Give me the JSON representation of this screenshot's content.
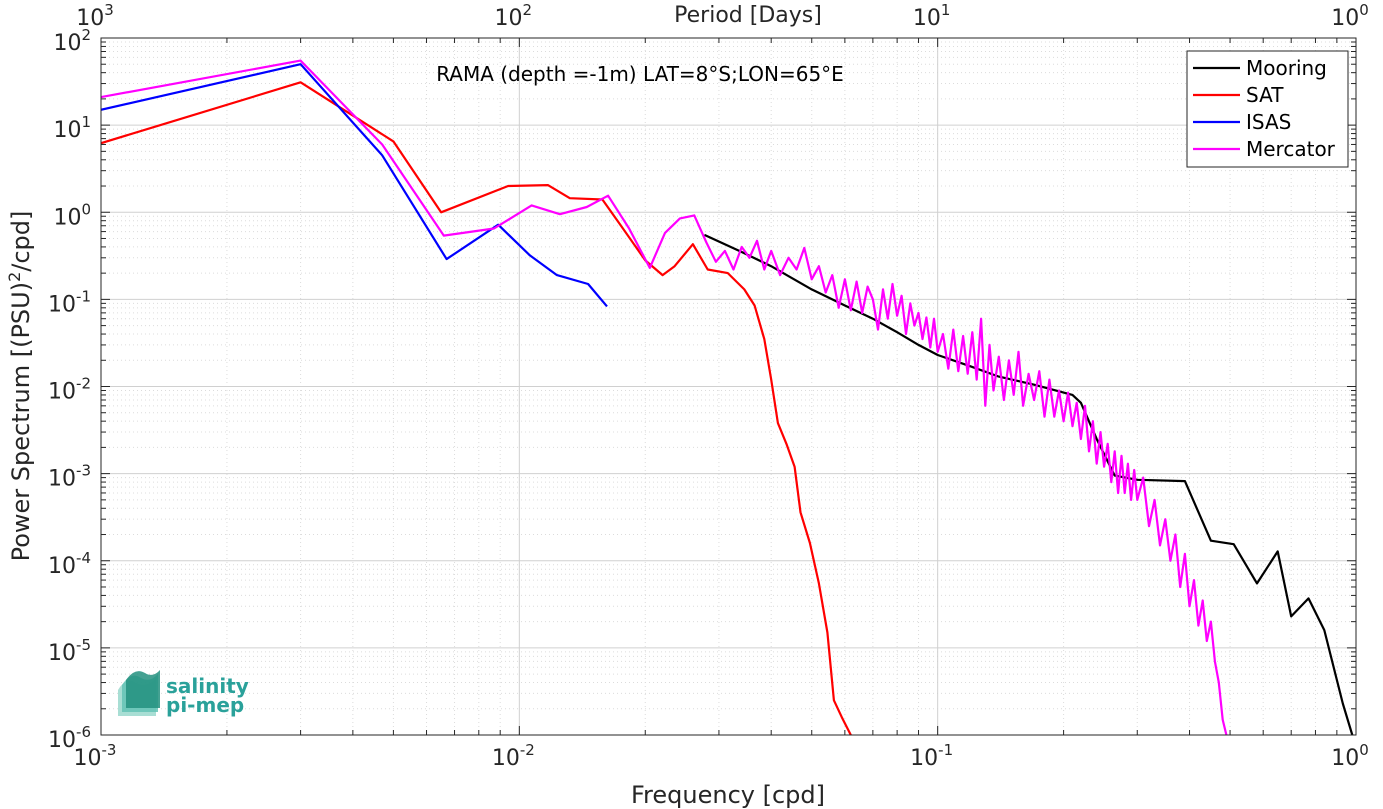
{
  "chart_data": {
    "type": "line",
    "title": "RAMA (depth =-1m) LAT=8°S;LON=65°E",
    "xlabel": "Frequency [cpd]",
    "ylabel": "Power Spectrum [(PSU)²/cpd]",
    "ylabel_parts": {
      "main": "Power Spectrum [(PSU)",
      "sup": "2",
      "tail": "/cpd]"
    },
    "x2label": "Period [Days]",
    "xscale": "log",
    "yscale": "log",
    "xlim": [
      0.001,
      1
    ],
    "ylim": [
      1e-06,
      100
    ],
    "grid": true,
    "legend_position": "top-right",
    "x_ticks": [
      {
        "value": 0.001,
        "base": "10",
        "exp": "-3"
      },
      {
        "value": 0.01,
        "base": "10",
        "exp": "-2"
      },
      {
        "value": 0.1,
        "base": "10",
        "exp": "-1"
      },
      {
        "value": 1,
        "base": "10",
        "exp": "0"
      }
    ],
    "x2_ticks": [
      {
        "value": 0.001,
        "base": "10",
        "exp": "3"
      },
      {
        "value": 0.01,
        "base": "10",
        "exp": "2"
      },
      {
        "value": 0.1,
        "base": "10",
        "exp": "1"
      },
      {
        "value": 1,
        "base": "10",
        "exp": "0"
      }
    ],
    "y_ticks": [
      {
        "value": 100,
        "base": "10",
        "exp": "2"
      },
      {
        "value": 10,
        "base": "10",
        "exp": "1"
      },
      {
        "value": 1,
        "base": "10",
        "exp": "0"
      },
      {
        "value": 0.1,
        "base": "10",
        "exp": "-1"
      },
      {
        "value": 0.01,
        "base": "10",
        "exp": "-2"
      },
      {
        "value": 0.001,
        "base": "10",
        "exp": "-3"
      },
      {
        "value": 0.0001,
        "base": "10",
        "exp": "-4"
      },
      {
        "value": 1e-05,
        "base": "10",
        "exp": "-5"
      },
      {
        "value": 1e-06,
        "base": "10",
        "exp": "-6"
      }
    ],
    "series": [
      {
        "name": "Mooring",
        "color": "#000000",
        "points": [
          [
            0.0277,
            0.55
          ],
          [
            0.034,
            0.35
          ],
          [
            0.04,
            0.24
          ],
          [
            0.05,
            0.13
          ],
          [
            0.06,
            0.085
          ],
          [
            0.07,
            0.06
          ],
          [
            0.08,
            0.042
          ],
          [
            0.09,
            0.03
          ],
          [
            0.1,
            0.023
          ],
          [
            0.12,
            0.017
          ],
          [
            0.14,
            0.013
          ],
          [
            0.17,
            0.0105
          ],
          [
            0.21,
            0.008
          ],
          [
            0.22,
            0.0065
          ],
          [
            0.24,
            0.0025
          ],
          [
            0.265,
            0.00095
          ],
          [
            0.3,
            0.00085
          ],
          [
            0.39,
            0.00082
          ],
          [
            0.45,
            0.00017
          ],
          [
            0.51,
            0.000155
          ],
          [
            0.58,
            5.5e-05
          ],
          [
            0.65,
            0.000128
          ],
          [
            0.7,
            2.3e-05
          ],
          [
            0.77,
            3.7e-05
          ],
          [
            0.84,
            1.6e-05
          ],
          [
            0.93,
            2.3e-06
          ],
          [
            0.98,
            1e-06
          ]
        ]
      },
      {
        "name": "SAT",
        "color": "#ff0000",
        "points": [
          [
            0.001,
            6.2
          ],
          [
            0.003,
            31
          ],
          [
            0.005,
            6.5
          ],
          [
            0.0065,
            1.0
          ],
          [
            0.0094,
            2.0
          ],
          [
            0.0117,
            2.05
          ],
          [
            0.0132,
            1.45
          ],
          [
            0.0158,
            1.4
          ],
          [
            0.0175,
            0.7
          ],
          [
            0.02,
            0.28
          ],
          [
            0.022,
            0.19
          ],
          [
            0.0235,
            0.24
          ],
          [
            0.026,
            0.43
          ],
          [
            0.0282,
            0.22
          ],
          [
            0.0315,
            0.2
          ],
          [
            0.0345,
            0.13
          ],
          [
            0.0365,
            0.085
          ],
          [
            0.0385,
            0.035
          ],
          [
            0.04,
            0.012
          ],
          [
            0.0415,
            0.0038
          ],
          [
            0.0435,
            0.0022
          ],
          [
            0.0455,
            0.0012
          ],
          [
            0.047,
            0.00036
          ],
          [
            0.0495,
            0.00016
          ],
          [
            0.052,
            5.5e-05
          ],
          [
            0.0545,
            1.5e-05
          ],
          [
            0.0565,
            2.5e-06
          ],
          [
            0.059,
            1.6e-06
          ],
          [
            0.062,
            1e-06
          ]
        ]
      },
      {
        "name": "ISAS",
        "color": "#0000ff",
        "points": [
          [
            0.001,
            15
          ],
          [
            0.003,
            50
          ],
          [
            0.0047,
            4.5
          ],
          [
            0.0067,
            0.29
          ],
          [
            0.0089,
            0.72
          ],
          [
            0.0106,
            0.32
          ],
          [
            0.0123,
            0.19
          ],
          [
            0.0146,
            0.15
          ],
          [
            0.0162,
            0.083
          ]
        ]
      },
      {
        "name": "Mercator",
        "color": "#ff00ff",
        "points": [
          [
            0.001,
            21
          ],
          [
            0.003,
            55
          ],
          [
            0.0047,
            6.0
          ],
          [
            0.0066,
            0.54
          ],
          [
            0.0087,
            0.65
          ],
          [
            0.0107,
            1.2
          ],
          [
            0.0125,
            0.95
          ],
          [
            0.0145,
            1.15
          ],
          [
            0.0163,
            1.55
          ],
          [
            0.0183,
            0.65
          ],
          [
            0.0205,
            0.23
          ],
          [
            0.0223,
            0.58
          ],
          [
            0.0242,
            0.85
          ],
          [
            0.0262,
            0.92
          ],
          [
            0.028,
            0.45
          ],
          [
            0.0295,
            0.27
          ],
          [
            0.031,
            0.36
          ],
          [
            0.0325,
            0.22
          ],
          [
            0.034,
            0.4
          ],
          [
            0.0355,
            0.3
          ],
          [
            0.037,
            0.47
          ],
          [
            0.0385,
            0.22
          ],
          [
            0.04,
            0.36
          ],
          [
            0.042,
            0.19
          ],
          [
            0.044,
            0.3
          ],
          [
            0.046,
            0.22
          ],
          [
            0.048,
            0.39
          ],
          [
            0.05,
            0.17
          ],
          [
            0.052,
            0.24
          ],
          [
            0.054,
            0.12
          ],
          [
            0.056,
            0.19
          ],
          [
            0.058,
            0.08
          ],
          [
            0.06,
            0.17
          ],
          [
            0.062,
            0.075
          ],
          [
            0.064,
            0.16
          ],
          [
            0.066,
            0.07
          ],
          [
            0.068,
            0.14
          ],
          [
            0.07,
            0.1
          ],
          [
            0.072,
            0.045
          ],
          [
            0.074,
            0.13
          ],
          [
            0.076,
            0.06
          ],
          [
            0.078,
            0.15
          ],
          [
            0.08,
            0.065
          ],
          [
            0.082,
            0.11
          ],
          [
            0.084,
            0.04
          ],
          [
            0.086,
            0.09
          ],
          [
            0.088,
            0.05
          ],
          [
            0.09,
            0.07
          ],
          [
            0.092,
            0.035
          ],
          [
            0.094,
            0.062
          ],
          [
            0.096,
            0.028
          ],
          [
            0.098,
            0.06
          ],
          [
            0.1,
            0.025
          ],
          [
            0.103,
            0.04
          ],
          [
            0.106,
            0.016
          ],
          [
            0.109,
            0.045
          ],
          [
            0.112,
            0.015
          ],
          [
            0.115,
            0.038
          ],
          [
            0.118,
            0.014
          ],
          [
            0.121,
            0.042
          ],
          [
            0.124,
            0.012
          ],
          [
            0.127,
            0.06
          ],
          [
            0.13,
            0.006
          ],
          [
            0.133,
            0.03
          ],
          [
            0.136,
            0.009
          ],
          [
            0.14,
            0.022
          ],
          [
            0.144,
            0.007
          ],
          [
            0.148,
            0.02
          ],
          [
            0.152,
            0.008
          ],
          [
            0.156,
            0.025
          ],
          [
            0.16,
            0.006
          ],
          [
            0.165,
            0.014
          ],
          [
            0.17,
            0.007
          ],
          [
            0.175,
            0.015
          ],
          [
            0.18,
            0.0045
          ],
          [
            0.185,
            0.012
          ],
          [
            0.19,
            0.0045
          ],
          [
            0.195,
            0.009
          ],
          [
            0.2,
            0.004
          ],
          [
            0.205,
            0.0085
          ],
          [
            0.21,
            0.0035
          ],
          [
            0.215,
            0.0065
          ],
          [
            0.22,
            0.0025
          ],
          [
            0.225,
            0.006
          ],
          [
            0.23,
            0.0018
          ],
          [
            0.235,
            0.004
          ],
          [
            0.24,
            0.0013
          ],
          [
            0.245,
            0.003
          ],
          [
            0.25,
            0.0012
          ],
          [
            0.255,
            0.0022
          ],
          [
            0.26,
            0.0008
          ],
          [
            0.265,
            0.0018
          ],
          [
            0.27,
            0.0006
          ],
          [
            0.275,
            0.0016
          ],
          [
            0.28,
            0.0006
          ],
          [
            0.285,
            0.0013
          ],
          [
            0.29,
            0.0005
          ],
          [
            0.295,
            0.0011
          ],
          [
            0.3,
            0.0005
          ],
          [
            0.31,
            0.0009
          ],
          [
            0.32,
            0.00025
          ],
          [
            0.33,
            0.0005
          ],
          [
            0.34,
            0.00015
          ],
          [
            0.35,
            0.0003
          ],
          [
            0.36,
            0.0001
          ],
          [
            0.37,
            0.0002
          ],
          [
            0.38,
            5e-05
          ],
          [
            0.39,
            0.00012
          ],
          [
            0.4,
            3e-05
          ],
          [
            0.41,
            6e-05
          ],
          [
            0.42,
            1.8e-05
          ],
          [
            0.43,
            3.5e-05
          ],
          [
            0.44,
            1.2e-05
          ],
          [
            0.45,
            2e-05
          ],
          [
            0.46,
            7e-06
          ],
          [
            0.47,
            4e-06
          ],
          [
            0.48,
            1.5e-06
          ],
          [
            0.49,
            1e-06
          ]
        ]
      }
    ]
  },
  "logo": {
    "line1": "salinity",
    "line2": "pi-mep"
  }
}
